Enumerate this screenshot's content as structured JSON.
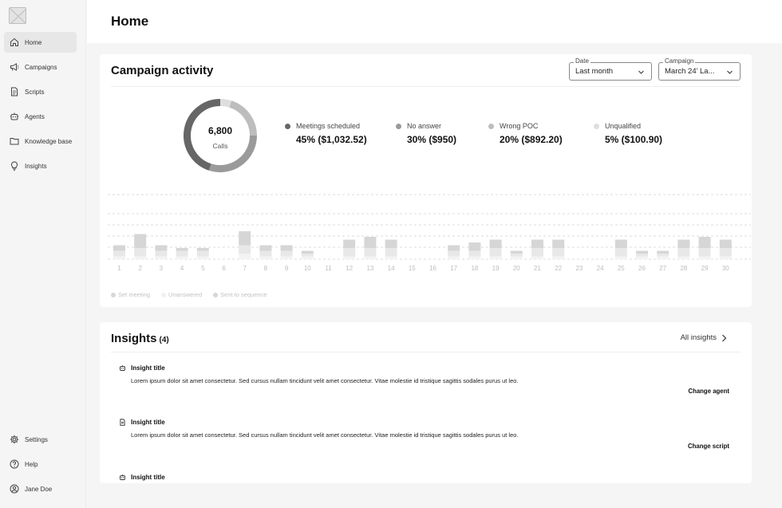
{
  "sidebar": {
    "logo_icon": "placeholder-image-icon",
    "items": [
      {
        "label": "Home",
        "icon": "home-icon",
        "active": true
      },
      {
        "label": "Campaigns",
        "icon": "megaphone-icon"
      },
      {
        "label": "Scripts",
        "icon": "document-icon"
      },
      {
        "label": "Agents",
        "icon": "robot-icon"
      },
      {
        "label": "Knowledge base",
        "icon": "folder-icon"
      },
      {
        "label": "Insights",
        "icon": "lightbulb-icon"
      }
    ],
    "bottom_items": [
      {
        "label": "Settings",
        "icon": "gear-icon"
      },
      {
        "label": "Help",
        "icon": "help-circle-icon"
      },
      {
        "label": "Jane Doe",
        "icon": "user-avatar-icon"
      }
    ]
  },
  "header": {
    "title": "Home"
  },
  "activity": {
    "title": "Campaign activity",
    "date_filter": {
      "legend": "Date",
      "value": "Last month"
    },
    "campaign_filter": {
      "legend": "Campaign",
      "value": "March 24’ La..."
    },
    "donut": {
      "value": "6,800",
      "label": "Calls"
    },
    "stats": [
      {
        "label": "Meetings scheduled",
        "value": "45%  ($1,032.52)",
        "color": "#666666"
      },
      {
        "label": "No answer",
        "value": "30%  ($950)",
        "color": "#9a9a9a"
      },
      {
        "label": "Wrong POC",
        "value": "20%  ($892.20)",
        "color": "#bdbdbd"
      },
      {
        "label": "Unqualified",
        "value": "5%  ($100.90)",
        "color": "#dedede"
      }
    ],
    "legend": [
      {
        "label": "Set meeting",
        "color": "#d6d6d6"
      },
      {
        "label": "Unanswered",
        "color": "#eeeeee"
      },
      {
        "label": "Sent to sequence",
        "color": "#d6d6d6"
      }
    ]
  },
  "chart_data": {
    "type": "bar",
    "stacked": true,
    "categories": [
      "1",
      "2",
      "3",
      "4",
      "5",
      "6",
      "7",
      "8",
      "9",
      "10",
      "11",
      "12",
      "13",
      "14",
      "15",
      "16",
      "17",
      "18",
      "19",
      "20",
      "21",
      "22",
      "23",
      "24",
      "25",
      "26",
      "27",
      "28",
      "29",
      "30"
    ],
    "series": [
      {
        "name": "Set meeting",
        "values": [
          2,
          5,
          2,
          1,
          1,
          0,
          5,
          2,
          2,
          1,
          0,
          3,
          4,
          3,
          0,
          0,
          2,
          3,
          3,
          1,
          3,
          3,
          0,
          0,
          3,
          1,
          1,
          3,
          4,
          3
        ]
      },
      {
        "name": "Unanswered",
        "values": [
          2,
          3,
          2,
          2,
          2,
          0,
          3,
          2,
          2,
          1,
          0,
          3,
          3,
          3,
          0,
          0,
          2,
          2,
          3,
          1,
          3,
          3,
          0,
          0,
          3,
          1,
          1,
          3,
          3,
          3
        ]
      },
      {
        "name": "Sent to sequence",
        "values": [
          1,
          1,
          1,
          1,
          1,
          0,
          2,
          1,
          1,
          1,
          0,
          1,
          1,
          1,
          0,
          0,
          1,
          1,
          1,
          1,
          1,
          1,
          0,
          0,
          1,
          1,
          1,
          1,
          1,
          1
        ]
      }
    ],
    "colors": [
      "#d6d6d6",
      "#e8e8e8",
      "#f3f3f3"
    ],
    "gridlines": true,
    "legend_position": "bottom-left"
  },
  "insights": {
    "title": "Insights",
    "count": "(4)",
    "all_link": "All insights",
    "items": [
      {
        "icon": "robot-icon",
        "title": "Insight title",
        "body": "Lorem ipsum dolor sit amet consectetur. Sed cursus nullam tincidunt velit amet consectetur. Vitae molestie id tristique sagittis sodales purus ut leo.",
        "action": "Change agent"
      },
      {
        "icon": "document-icon",
        "title": "Insight title",
        "body": "Lorem ipsum dolor sit amet consectetur. Sed cursus nullam tincidunt velit amet consectetur. Vitae molestie id tristique sagittis sodales purus ut leo.",
        "action": "Change script"
      },
      {
        "icon": "robot-icon",
        "title": "Insight title",
        "body": "",
        "action": ""
      }
    ]
  }
}
